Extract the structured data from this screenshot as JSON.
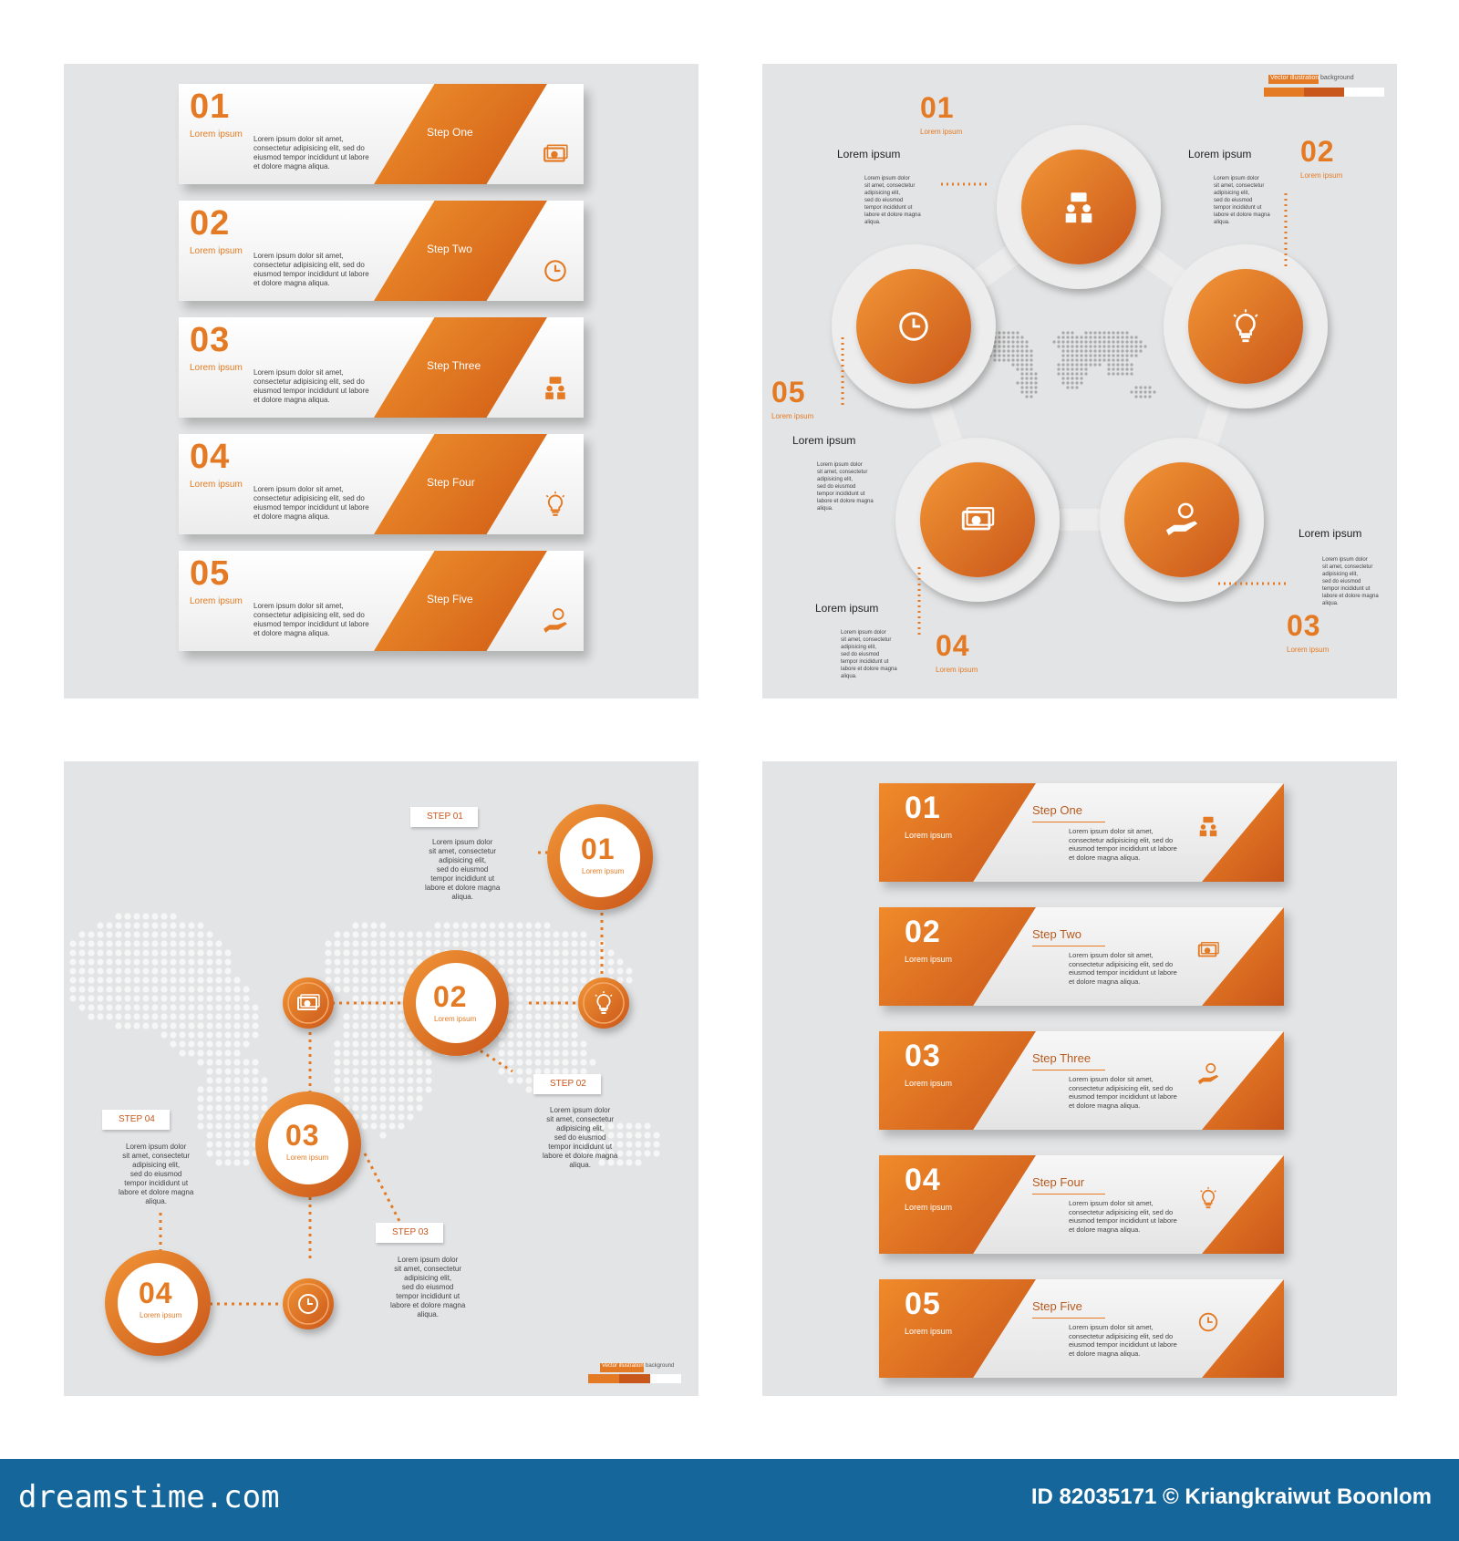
{
  "panel1": {
    "items": [
      {
        "num": "01",
        "sub": "Lorem ipsum",
        "step": "Step One",
        "text": "Lorem ipsum dolor sit amet,\nconsectetur adipisicing elit, sed do\neiusmod tempor incididunt ut labore\net dolore magna aliqua.",
        "icon": "money-icon"
      },
      {
        "num": "02",
        "sub": "Lorem ipsum",
        "step": "Step Two",
        "text": "Lorem ipsum dolor sit amet,\nconsectetur adipisicing elit, sed do\neiusmod tempor incididunt ut labore\net dolore magna aliqua.",
        "icon": "clock-icon"
      },
      {
        "num": "03",
        "sub": "Lorem ipsum",
        "step": "Step Three",
        "text": "Lorem ipsum dolor sit amet,\nconsectetur adipisicing elit, sed do\neiusmod tempor incididunt ut labore\net dolore magna aliqua.",
        "icon": "people-icon"
      },
      {
        "num": "04",
        "sub": "Lorem ipsum",
        "step": "Step Four",
        "text": "Lorem ipsum dolor sit amet,\nconsectetur adipisicing elit, sed do\neiusmod tempor incididunt ut labore\net dolore magna aliqua.",
        "icon": "bulb-icon"
      },
      {
        "num": "05",
        "sub": "Lorem ipsum",
        "step": "Step Five",
        "text": "Lorem ipsum dolor sit amet,\nconsectetur adipisicing elit, sed do\neiusmod tempor incididunt ut labore\net dolore magna aliqua.",
        "icon": "hand-coin-icon"
      }
    ]
  },
  "panel2": {
    "badge": {
      "label": "Vector illustration",
      "suffix": "background"
    },
    "items": [
      {
        "num": "01",
        "sub": "Lorem ipsum",
        "head": "Lorem ipsum",
        "text": "Lorem ipsum dolor\nsit amet, consectetur\nadipisicing elit,\nsed do eiusmod\ntempor incididunt ut\nlabore et dolore magna\naliqua."
      },
      {
        "num": "02",
        "sub": "Lorem ipsum",
        "head": "Lorem ipsum",
        "text": "Lorem ipsum dolor\nsit amet, consectetur\nadipisicing elit,\nsed do eiusmod\ntempor incididunt ut\nlabore et dolore magna\naliqua."
      },
      {
        "num": "03",
        "sub": "Lorem ipsum",
        "head": "Lorem ipsum",
        "text": "Lorem ipsum dolor\nsit amet, consectetur\nadipisicing elit,\nsed do eiusmod\ntempor incididunt ut\nlabore et dolore magna\naliqua."
      },
      {
        "num": "04",
        "sub": "Lorem ipsum",
        "head": "Lorem ipsum",
        "text": "Lorem ipsum dolor\nsit amet, consectetur\nadipisicing elit,\nsed do eiusmod\ntempor incididunt ut\nlabore et dolore magna\naliqua."
      },
      {
        "num": "05",
        "sub": "Lorem ipsum",
        "head": "Lorem ipsum",
        "text": "Lorem ipsum dolor\nsit amet, consectetur\nadipisicing elit,\nsed do eiusmod\ntempor incididunt ut\nlabore et dolore magna\naliqua."
      }
    ]
  },
  "panel3": {
    "badge": {
      "label": "Vector illustration",
      "suffix": "background"
    },
    "items": [
      {
        "num": "01",
        "sub": "Lorem ipsum",
        "step": "STEP 01",
        "text": "Lorem ipsum dolor\nsit amet, consectetur\nadipisicing elit,\nsed do eiusmod\ntempor incididunt ut\nlabore et dolore magna\naliqua."
      },
      {
        "num": "02",
        "sub": "Lorem ipsum",
        "step": "STEP 02",
        "text": "Lorem ipsum dolor\nsit amet, consectetur\nadipisicing elit,\nsed do eiusmod\ntempor incididunt ut\nlabore et dolore magna\naliqua."
      },
      {
        "num": "03",
        "sub": "Lorem ipsum",
        "step": "STEP 03",
        "text": "Lorem ipsum dolor\nsit amet, consectetur\nadipisicing elit,\nsed do eiusmod\ntempor incididunt ut\nlabore et dolore magna\naliqua."
      },
      {
        "num": "04",
        "sub": "Lorem ipsum",
        "step": "STEP 04",
        "text": "Lorem ipsum dolor\nsit amet, consectetur\nadipisicing elit,\nsed do eiusmod\ntempor incididunt ut\nlabore et dolore magna\naliqua."
      }
    ]
  },
  "panel4": {
    "items": [
      {
        "num": "01",
        "sub": "Lorem ipsum",
        "step": "Step One",
        "text": "Lorem ipsum dolor sit amet,\nconsectetur adipisicing elit, sed do\neiusmod tempor incididunt ut labore\net dolore magna aliqua.",
        "icon": "people-icon"
      },
      {
        "num": "02",
        "sub": "Lorem ipsum",
        "step": "Step Two",
        "text": "Lorem ipsum dolor sit amet,\nconsectetur adipisicing elit, sed do\neiusmod tempor incididunt ut labore\net dolore magna aliqua.",
        "icon": "money-icon"
      },
      {
        "num": "03",
        "sub": "Lorem ipsum",
        "step": "Step Three",
        "text": "Lorem ipsum dolor sit amet,\nconsectetur adipisicing elit, sed do\neiusmod tempor incididunt ut labore\net dolore magna aliqua.",
        "icon": "hand-coin-icon"
      },
      {
        "num": "04",
        "sub": "Lorem ipsum",
        "step": "Step Four",
        "text": "Lorem ipsum dolor sit amet,\nconsectetur adipisicing elit, sed do\neiusmod tempor incididunt ut labore\net dolore magna aliqua.",
        "icon": "bulb-icon"
      },
      {
        "num": "05",
        "sub": "Lorem ipsum",
        "step": "Step Five",
        "text": "Lorem ipsum dolor sit amet,\nconsectetur adipisicing elit, sed do\neiusmod tempor incididunt ut labore\net dolore magna aliqua.",
        "icon": "clock-icon"
      }
    ]
  },
  "footer": {
    "brand": "dreamstime.com",
    "credit": "ID 82035171 © Kriangkraiwut Boonlom"
  },
  "colors": {
    "accent": "#e47a23",
    "accent_dark": "#c9561a",
    "panel_bg": "#e3e4e5",
    "footer_bg": "#15669a"
  }
}
